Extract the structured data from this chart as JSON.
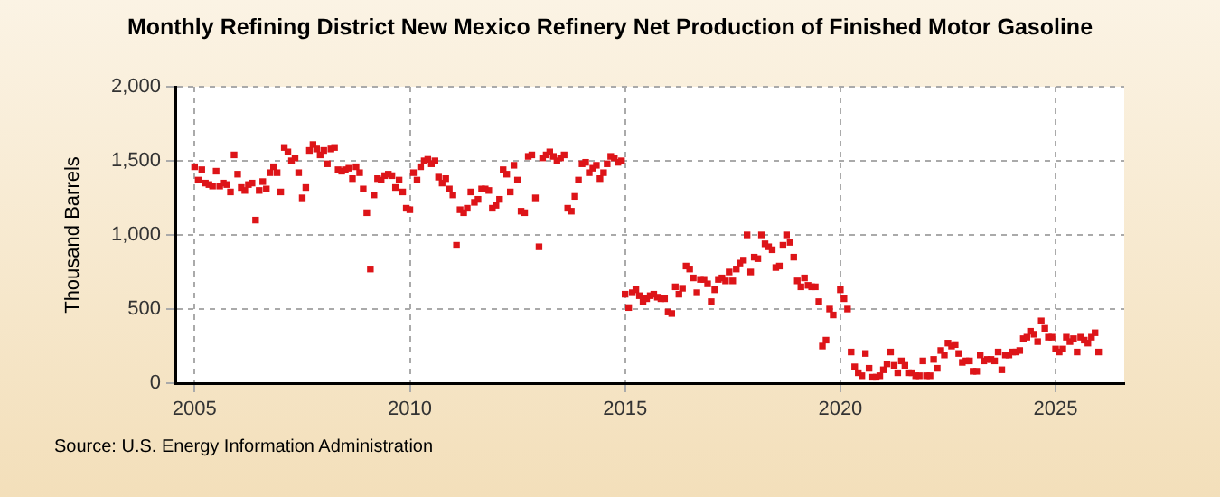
{
  "chart_data": {
    "type": "scatter",
    "title": "Monthly Refining District New Mexico Refinery Net Production of Finished Motor Gasoline",
    "ylabel": "Thousand Barrels",
    "annotations": [
      "Source: U.S. Energy Information Administration"
    ],
    "x": [
      "2005-01",
      "2005-02",
      "2005-03",
      "2005-04",
      "2005-05",
      "2005-06",
      "2005-07",
      "2005-08",
      "2005-09",
      "2005-10",
      "2005-11",
      "2005-12",
      "2006-01",
      "2006-02",
      "2006-03",
      "2006-04",
      "2006-05",
      "2006-06",
      "2006-07",
      "2006-08",
      "2006-09",
      "2006-10",
      "2006-11",
      "2006-12",
      "2007-01",
      "2007-02",
      "2007-03",
      "2007-04",
      "2007-05",
      "2007-06",
      "2007-07",
      "2007-08",
      "2007-09",
      "2007-10",
      "2007-11",
      "2007-12",
      "2008-01",
      "2008-02",
      "2008-03",
      "2008-04",
      "2008-05",
      "2008-06",
      "2008-07",
      "2008-08",
      "2008-09",
      "2008-10",
      "2008-11",
      "2008-12",
      "2009-01",
      "2009-02",
      "2009-03",
      "2009-04",
      "2009-05",
      "2009-06",
      "2009-07",
      "2009-08",
      "2009-09",
      "2009-10",
      "2009-11",
      "2009-12",
      "2010-01",
      "2010-02",
      "2010-03",
      "2010-04",
      "2010-05",
      "2010-06",
      "2010-07",
      "2010-08",
      "2010-09",
      "2010-10",
      "2010-11",
      "2010-12",
      "2011-01",
      "2011-02",
      "2011-03",
      "2011-04",
      "2011-05",
      "2011-06",
      "2011-07",
      "2011-08",
      "2011-09",
      "2011-10",
      "2011-11",
      "2011-12",
      "2012-01",
      "2012-02",
      "2012-03",
      "2012-04",
      "2012-05",
      "2012-06",
      "2012-07",
      "2012-08",
      "2012-09",
      "2012-10",
      "2012-11",
      "2012-12",
      "2013-01",
      "2013-02",
      "2013-03",
      "2013-04",
      "2013-05",
      "2013-06",
      "2013-07",
      "2013-08",
      "2013-09",
      "2013-10",
      "2013-11",
      "2013-12",
      "2014-01",
      "2014-02",
      "2014-03",
      "2014-04",
      "2014-05",
      "2014-06",
      "2014-07",
      "2014-08",
      "2014-09",
      "2014-10",
      "2014-11",
      "2014-12",
      "2015-01",
      "2015-02",
      "2015-03",
      "2015-04",
      "2015-05",
      "2015-06",
      "2015-07",
      "2015-08",
      "2015-09",
      "2015-10",
      "2015-11",
      "2015-12",
      "2016-01",
      "2016-02",
      "2016-03",
      "2016-04",
      "2016-05",
      "2016-06",
      "2016-07",
      "2016-08",
      "2016-09",
      "2016-10",
      "2016-11",
      "2016-12",
      "2017-01",
      "2017-02",
      "2017-03",
      "2017-04",
      "2017-05",
      "2017-06",
      "2017-07",
      "2017-08",
      "2017-09",
      "2017-10",
      "2017-11",
      "2017-12",
      "2018-01",
      "2018-02",
      "2018-03",
      "2018-04",
      "2018-05",
      "2018-06",
      "2018-07",
      "2018-08",
      "2018-09",
      "2018-10",
      "2018-11",
      "2018-12",
      "2019-01",
      "2019-02",
      "2019-03",
      "2019-04",
      "2019-05",
      "2019-06",
      "2019-07",
      "2019-08",
      "2019-09",
      "2019-10",
      "2019-11",
      "2019-12",
      "2020-01",
      "2020-02",
      "2020-03",
      "2020-04",
      "2020-05",
      "2020-06",
      "2020-07",
      "2020-08",
      "2020-09",
      "2020-10",
      "2020-11",
      "2020-12",
      "2021-01",
      "2021-02",
      "2021-03",
      "2021-04",
      "2021-05",
      "2021-06",
      "2021-07",
      "2021-08",
      "2021-09",
      "2021-10",
      "2021-11",
      "2021-12",
      "2022-01",
      "2022-02",
      "2022-03",
      "2022-04",
      "2022-05",
      "2022-06",
      "2022-07",
      "2022-08",
      "2022-09",
      "2022-10",
      "2022-11",
      "2022-12",
      "2023-01",
      "2023-02",
      "2023-03",
      "2023-04",
      "2023-05",
      "2023-06",
      "2023-07",
      "2023-08",
      "2023-09",
      "2023-10",
      "2023-11",
      "2023-12",
      "2024-01",
      "2024-02",
      "2024-03",
      "2024-04",
      "2024-05",
      "2024-06",
      "2024-07",
      "2024-08",
      "2024-09",
      "2024-10",
      "2024-11",
      "2024-12",
      "2025-01",
      "2025-02",
      "2025-03",
      "2025-04",
      "2025-05",
      "2025-06",
      "2025-07",
      "2025-08",
      "2025-09",
      "2025-10",
      "2025-11",
      "2025-12",
      "2026-01"
    ],
    "series": [
      {
        "color": "#dd1418",
        "values": [
          1460,
          1370,
          1440,
          1350,
          1340,
          1330,
          1430,
          1330,
          1350,
          1340,
          1290,
          1540,
          1410,
          1320,
          1300,
          1340,
          1350,
          1100,
          1300,
          1360,
          1310,
          1420,
          1460,
          1420,
          1290,
          1590,
          1560,
          1500,
          1520,
          1420,
          1250,
          1320,
          1570,
          1610,
          1580,
          1540,
          1570,
          1480,
          1580,
          1590,
          1440,
          1430,
          1440,
          1450,
          1380,
          1460,
          1420,
          1310,
          1150,
          770,
          1270,
          1380,
          1370,
          1400,
          1410,
          1400,
          1320,
          1370,
          1290,
          1180,
          1170,
          1420,
          1370,
          1460,
          1500,
          1510,
          1480,
          1500,
          1390,
          1350,
          1380,
          1310,
          1270,
          930,
          1170,
          1150,
          1180,
          1290,
          1220,
          1240,
          1310,
          1310,
          1300,
          1180,
          1200,
          1240,
          1440,
          1410,
          1290,
          1470,
          1370,
          1160,
          1150,
          1530,
          1540,
          1250,
          920,
          1520,
          1540,
          1560,
          1530,
          1500,
          1520,
          1540,
          1180,
          1160,
          1260,
          1370,
          1480,
          1490,
          1420,
          1450,
          1470,
          1380,
          1420,
          1480,
          1530,
          1520,
          1490,
          1500,
          600,
          510,
          610,
          630,
          590,
          550,
          570,
          590,
          600,
          580,
          570,
          570,
          480,
          470,
          650,
          600,
          640,
          790,
          770,
          710,
          610,
          700,
          700,
          670,
          550,
          630,
          700,
          710,
          690,
          750,
          690,
          770,
          810,
          830,
          1000,
          750,
          850,
          840,
          1000,
          940,
          920,
          900,
          780,
          790,
          930,
          1000,
          950,
          850,
          690,
          650,
          710,
          660,
          650,
          650,
          550,
          250,
          290,
          500,
          460,
          null,
          630,
          570,
          500,
          210,
          110,
          70,
          50,
          200,
          100,
          40,
          40,
          50,
          90,
          130,
          210,
          120,
          70,
          150,
          120,
          70,
          70,
          50,
          50,
          150,
          50,
          50,
          160,
          100,
          220,
          190,
          270,
          250,
          260,
          200,
          140,
          150,
          150,
          80,
          80,
          190,
          150,
          160,
          160,
          150,
          210,
          90,
          190,
          190,
          210,
          210,
          220,
          300,
          310,
          350,
          330,
          280,
          420,
          370,
          310,
          310,
          230,
          210,
          230,
          310,
          280,
          300,
          210,
          310,
          290,
          270,
          310,
          340,
          210
        ]
      }
    ],
    "xlim": [
      "2004-07-20",
      "2026-08-05"
    ],
    "xticks": [
      "2005",
      "2010",
      "2015",
      "2020",
      "2025"
    ],
    "ylim": [
      0,
      2000
    ],
    "yticks": [
      0,
      500,
      {
        "value": 1000,
        "label": "1,000"
      },
      {
        "value": 1500,
        "label": "1,500"
      },
      {
        "value": 2000,
        "label": "2,000"
      }
    ],
    "grid": true,
    "marker": "square",
    "legend": false
  }
}
